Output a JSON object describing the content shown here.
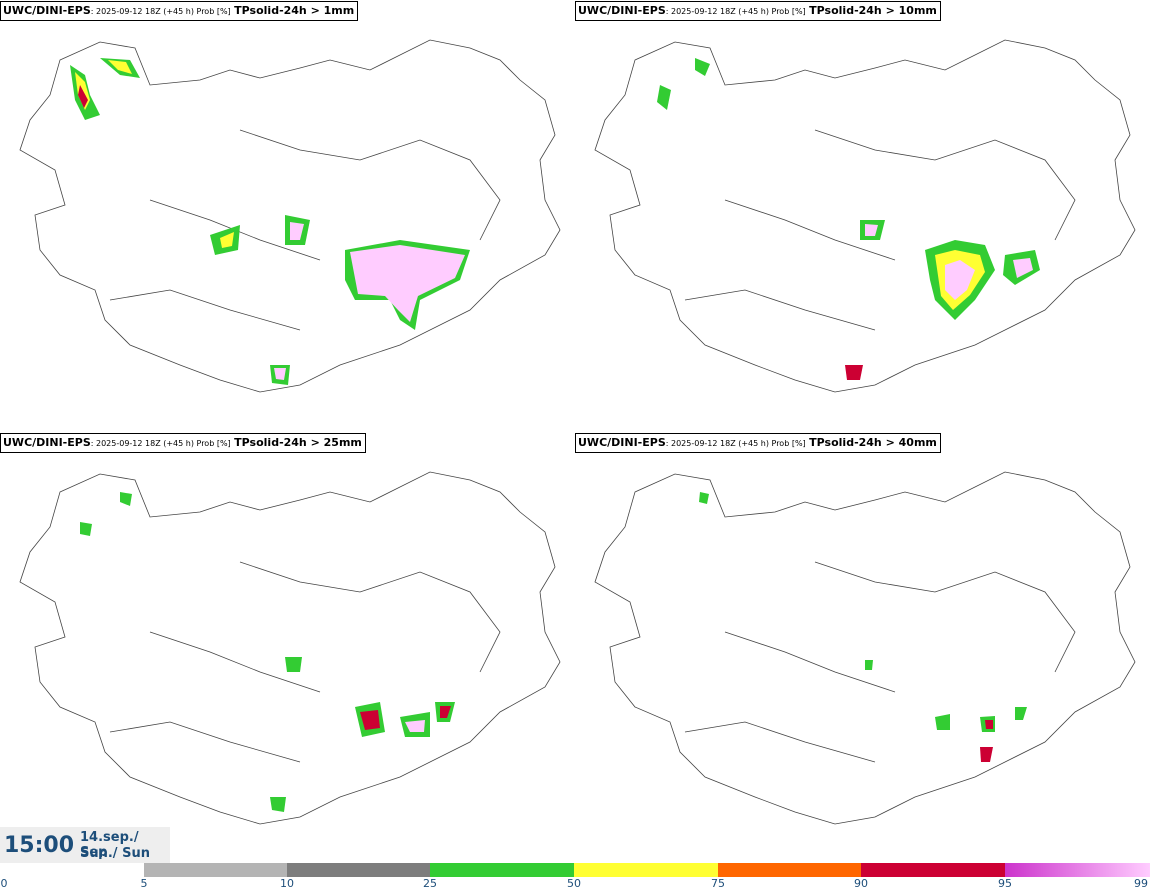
{
  "panels": [
    {
      "model": "UWC/DINI-EPS",
      "run": ": 2025-09-12 18Z (+45 h) Prob [%]",
      "param": "TPsolid-24h > 1mm"
    },
    {
      "model": "UWC/DINI-EPS",
      "run": ": 2025-09-12 18Z (+45 h) Prob [%]",
      "param": "TPsolid-24h > 10mm"
    },
    {
      "model": "UWC/DINI-EPS",
      "run": ": 2025-09-12 18Z (+45 h) Prob [%]",
      "param": "TPsolid-24h > 25mm"
    },
    {
      "model": "UWC/DINI-EPS",
      "run": ": 2025-09-12 18Z (+45 h) Prob [%]",
      "param": "TPsolid-24h > 40mm"
    }
  ],
  "valid_time": {
    "time": "15:00",
    "date_line1": "14.sep./ Sep",
    "date_line2": "Sun./ Sun"
  },
  "colorbar": {
    "ticks": [
      "0",
      "5",
      "10",
      "25",
      "50",
      "75",
      "90",
      "95",
      "99"
    ],
    "colors": [
      "#ffffff",
      "#b4b4b4",
      "#7d7d7d",
      "#33cc33",
      "#ffff33",
      "#ff6600",
      "#cc0033",
      "#cc33cc",
      "#ffccff"
    ]
  }
}
